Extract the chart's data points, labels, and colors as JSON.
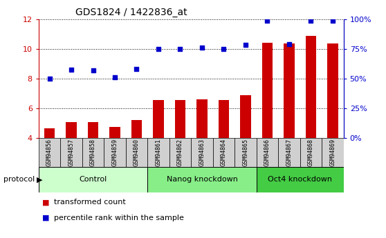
{
  "title": "GDS1824 / 1422836_at",
  "samples": [
    "GSM94856",
    "GSM94857",
    "GSM94858",
    "GSM94859",
    "GSM94860",
    "GSM94861",
    "GSM94862",
    "GSM94863",
    "GSM94864",
    "GSM94865",
    "GSM94866",
    "GSM94867",
    "GSM94868",
    "GSM94869"
  ],
  "bar_values": [
    4.65,
    5.05,
    5.05,
    4.75,
    5.2,
    6.55,
    6.55,
    6.6,
    6.55,
    6.9,
    10.4,
    10.35,
    10.85,
    10.35
  ],
  "dot_values": [
    8.0,
    8.6,
    8.55,
    8.1,
    8.65,
    10.0,
    10.0,
    10.1,
    10.0,
    10.25,
    11.9,
    10.3,
    11.9,
    11.9
  ],
  "groups": [
    {
      "label": "Control",
      "start": 0,
      "end": 5,
      "color": "#ccffcc"
    },
    {
      "label": "Nanog knockdown",
      "start": 5,
      "end": 10,
      "color": "#88ee88"
    },
    {
      "label": "Oct4 knockdown",
      "start": 10,
      "end": 14,
      "color": "#44cc44"
    }
  ],
  "ylim": [
    4,
    12
  ],
  "yticks": [
    4,
    6,
    8,
    10,
    12
  ],
  "y2tick_labels": [
    "0%",
    "25%",
    "50%",
    "75%",
    "100%"
  ],
  "bar_color": "#cc0000",
  "dot_color": "#0000cc",
  "bar_bottom": 4,
  "tick_label_color_left": "#cc0000",
  "tick_label_color_right": "#0000cc",
  "legend_items": [
    "transformed count",
    "percentile rank within the sample"
  ],
  "legend_colors": [
    "#cc0000",
    "#0000cc"
  ]
}
